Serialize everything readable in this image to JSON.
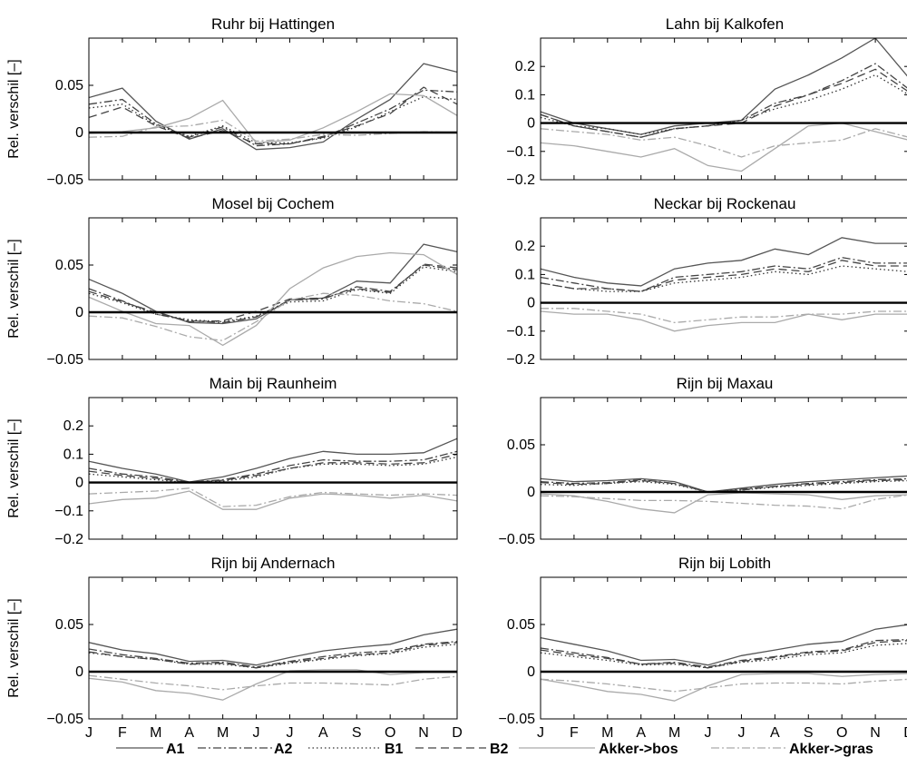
{
  "legend_position": "bottom",
  "ylabel": "Rel. verschil [–]",
  "months": [
    "J",
    "F",
    "M",
    "A",
    "M",
    "J",
    "J",
    "A",
    "S",
    "O",
    "N",
    "D"
  ],
  "styles": {
    "A1": {
      "color": "#555555",
      "dash": ""
    },
    "A2": {
      "color": "#444444",
      "dash": "9,3,2,3"
    },
    "B1": {
      "color": "#333333",
      "dash": "1.5,3"
    },
    "B2": {
      "color": "#444444",
      "dash": "9,5"
    },
    "Akker->bos": {
      "color": "#aaaaaa",
      "dash": ""
    },
    "Akker->gras": {
      "color": "#aaaaaa",
      "dash": "9,3,2,3"
    }
  },
  "chart_data": [
    {
      "type": "line",
      "title": "Ruhr bij Hattingen",
      "ylim": [
        -0.05,
        0.1
      ],
      "yticks": [
        -0.05,
        0,
        0.05
      ],
      "ytick_labels": [
        "−0.05",
        "0",
        "0.05"
      ],
      "x": [
        "J",
        "F",
        "M",
        "A",
        "M",
        "J",
        "J",
        "A",
        "S",
        "O",
        "N",
        "D"
      ],
      "series": [
        {
          "name": "A1",
          "values": [
            0.037,
            0.047,
            0.012,
            -0.007,
            0.004,
            -0.018,
            -0.016,
            -0.01,
            0.014,
            0.035,
            0.073,
            0.064
          ]
        },
        {
          "name": "A2",
          "values": [
            0.03,
            0.035,
            0.009,
            -0.005,
            0.006,
            -0.014,
            -0.012,
            -0.005,
            0.01,
            0.025,
            0.045,
            0.043
          ]
        },
        {
          "name": "B1",
          "values": [
            0.026,
            0.03,
            0.008,
            -0.004,
            0.007,
            -0.011,
            -0.011,
            -0.006,
            0.006,
            0.022,
            0.038,
            0.035
          ]
        },
        {
          "name": "B2",
          "values": [
            0.016,
            0.027,
            0.007,
            -0.006,
            0.002,
            -0.012,
            -0.012,
            -0.004,
            0.007,
            0.02,
            0.048,
            0.03
          ]
        },
        {
          "name": "Akker->bos",
          "values": [
            -0.001,
            0.001,
            0.005,
            0.015,
            0.034,
            -0.011,
            -0.008,
            0.005,
            0.022,
            0.041,
            0.039,
            0.018
          ]
        },
        {
          "name": "Akker->gras",
          "values": [
            -0.005,
            -0.004,
            0.006,
            0.007,
            0.013,
            -0.009,
            -0.007,
            -0.002,
            -0.003,
            -0.001,
            0.001,
            0.0
          ]
        }
      ]
    },
    {
      "type": "line",
      "title": "Lahn bij Kalkofen",
      "ylim": [
        -0.2,
        0.3
      ],
      "yticks": [
        -0.2,
        -0.1,
        0,
        0.1,
        0.2
      ],
      "ytick_labels": [
        "−0.2",
        "−0.1",
        "0",
        "0.1",
        "0.2"
      ],
      "x": [
        "J",
        "F",
        "M",
        "A",
        "M",
        "J",
        "J",
        "A",
        "S",
        "O",
        "N",
        "D"
      ],
      "series": [
        {
          "name": "A1",
          "values": [
            0.04,
            0.0,
            -0.02,
            -0.04,
            -0.01,
            0.0,
            0.01,
            0.12,
            0.17,
            0.23,
            0.3,
            0.16
          ]
        },
        {
          "name": "A2",
          "values": [
            0.03,
            -0.01,
            -0.03,
            -0.05,
            -0.02,
            -0.01,
            0.01,
            0.07,
            0.1,
            0.15,
            0.21,
            0.12
          ]
        },
        {
          "name": "B1",
          "values": [
            0.02,
            -0.01,
            -0.02,
            -0.04,
            -0.02,
            -0.01,
            0.01,
            0.05,
            0.08,
            0.12,
            0.17,
            0.1
          ]
        },
        {
          "name": "B2",
          "values": [
            0.03,
            -0.01,
            -0.03,
            -0.05,
            -0.02,
            -0.01,
            0.0,
            0.06,
            0.1,
            0.14,
            0.19,
            0.11
          ]
        },
        {
          "name": "Akker->bos",
          "values": [
            -0.07,
            -0.08,
            -0.1,
            -0.12,
            -0.09,
            -0.15,
            -0.17,
            -0.09,
            -0.01,
            -0.0,
            -0.03,
            -0.06
          ]
        },
        {
          "name": "Akker->gras",
          "values": [
            -0.02,
            -0.03,
            -0.04,
            -0.06,
            -0.05,
            -0.08,
            -0.12,
            -0.08,
            -0.07,
            -0.06,
            -0.02,
            -0.05
          ]
        }
      ]
    },
    {
      "type": "line",
      "title": "Mosel bij Cochem",
      "ylim": [
        -0.05,
        0.1
      ],
      "yticks": [
        -0.05,
        0,
        0.05
      ],
      "ytick_labels": [
        "−0.05",
        "0",
        "0.05"
      ],
      "x": [
        "J",
        "F",
        "M",
        "A",
        "M",
        "J",
        "J",
        "A",
        "S",
        "O",
        "N",
        "D"
      ],
      "series": [
        {
          "name": "A1",
          "values": [
            0.035,
            0.02,
            0.001,
            -0.011,
            -0.012,
            -0.007,
            0.013,
            0.015,
            0.033,
            0.031,
            0.072,
            0.064
          ]
        },
        {
          "name": "A2",
          "values": [
            0.025,
            0.012,
            -0.002,
            -0.009,
            -0.011,
            -0.005,
            0.013,
            0.014,
            0.027,
            0.022,
            0.05,
            0.045
          ]
        },
        {
          "name": "B1",
          "values": [
            0.02,
            0.01,
            -0.002,
            -0.008,
            -0.01,
            -0.004,
            0.011,
            0.012,
            0.024,
            0.02,
            0.048,
            0.043
          ]
        },
        {
          "name": "B2",
          "values": [
            0.022,
            0.011,
            0.0,
            -0.01,
            -0.009,
            0.001,
            0.014,
            0.015,
            0.025,
            0.021,
            0.051,
            0.047
          ]
        },
        {
          "name": "Akker->bos",
          "values": [
            0.016,
            0.001,
            -0.012,
            -0.014,
            -0.035,
            -0.014,
            0.025,
            0.047,
            0.059,
            0.063,
            0.061,
            0.04
          ]
        },
        {
          "name": "Akker->gras",
          "values": [
            -0.004,
            -0.006,
            -0.015,
            -0.026,
            -0.03,
            -0.01,
            0.013,
            0.02,
            0.018,
            0.012,
            0.009,
            0.001
          ]
        }
      ]
    },
    {
      "type": "line",
      "title": "Neckar bij Rockenau",
      "ylim": [
        -0.2,
        0.3
      ],
      "yticks": [
        -0.2,
        -0.1,
        0,
        0.1,
        0.2
      ],
      "ytick_labels": [
        "−0.2",
        "−0.1",
        "0",
        "0.1",
        "0.2"
      ],
      "x": [
        "J",
        "F",
        "M",
        "A",
        "M",
        "J",
        "J",
        "A",
        "S",
        "O",
        "N",
        "D"
      ],
      "series": [
        {
          "name": "A1",
          "values": [
            0.12,
            0.09,
            0.07,
            0.06,
            0.12,
            0.14,
            0.15,
            0.19,
            0.17,
            0.23,
            0.21,
            0.21
          ]
        },
        {
          "name": "A2",
          "values": [
            0.09,
            0.07,
            0.05,
            0.04,
            0.09,
            0.1,
            0.11,
            0.13,
            0.12,
            0.16,
            0.14,
            0.14
          ]
        },
        {
          "name": "B1",
          "values": [
            0.07,
            0.05,
            0.04,
            0.04,
            0.07,
            0.08,
            0.09,
            0.11,
            0.1,
            0.13,
            0.12,
            0.11
          ]
        },
        {
          "name": "B2",
          "values": [
            0.07,
            0.05,
            0.05,
            0.04,
            0.08,
            0.09,
            0.1,
            0.12,
            0.11,
            0.15,
            0.13,
            0.13
          ]
        },
        {
          "name": "Akker->bos",
          "values": [
            -0.03,
            -0.04,
            -0.04,
            -0.06,
            -0.1,
            -0.08,
            -0.07,
            -0.07,
            -0.04,
            -0.06,
            -0.04,
            -0.04
          ]
        },
        {
          "name": "Akker->gras",
          "values": [
            -0.02,
            -0.02,
            -0.03,
            -0.04,
            -0.07,
            -0.06,
            -0.05,
            -0.05,
            -0.04,
            -0.04,
            -0.03,
            -0.03
          ]
        }
      ]
    },
    {
      "type": "line",
      "title": "Main bij Raunheim",
      "ylim": [
        -0.2,
        0.3
      ],
      "yticks": [
        -0.2,
        -0.1,
        0,
        0.1,
        0.2
      ],
      "ytick_labels": [
        "−0.2",
        "−0.1",
        "0",
        "0.1",
        "0.2"
      ],
      "x": [
        "J",
        "F",
        "M",
        "A",
        "M",
        "J",
        "J",
        "A",
        "S",
        "O",
        "N",
        "D"
      ],
      "series": [
        {
          "name": "A1",
          "values": [
            0.075,
            0.05,
            0.03,
            0.002,
            0.02,
            0.05,
            0.085,
            0.11,
            0.1,
            0.1,
            0.105,
            0.155
          ]
        },
        {
          "name": "A2",
          "values": [
            0.05,
            0.03,
            0.02,
            0.001,
            0.01,
            0.03,
            0.06,
            0.08,
            0.075,
            0.075,
            0.08,
            0.11
          ]
        },
        {
          "name": "B1",
          "values": [
            0.03,
            0.02,
            0.01,
            0.0,
            0.005,
            0.02,
            0.05,
            0.065,
            0.065,
            0.06,
            0.065,
            0.09
          ]
        },
        {
          "name": "B2",
          "values": [
            0.04,
            0.025,
            0.015,
            0.0,
            0.008,
            0.025,
            0.05,
            0.07,
            0.07,
            0.065,
            0.07,
            0.1
          ]
        },
        {
          "name": "Akker->bos",
          "values": [
            -0.075,
            -0.06,
            -0.055,
            -0.03,
            -0.095,
            -0.095,
            -0.055,
            -0.04,
            -0.045,
            -0.055,
            -0.045,
            -0.065
          ]
        },
        {
          "name": "Akker->gras",
          "values": [
            -0.04,
            -0.035,
            -0.03,
            -0.02,
            -0.085,
            -0.08,
            -0.05,
            -0.035,
            -0.04,
            -0.045,
            -0.04,
            -0.045
          ]
        }
      ]
    },
    {
      "type": "line",
      "title": "Rijn bij Maxau",
      "ylim": [
        -0.05,
        0.1
      ],
      "yticks": [
        -0.05,
        0,
        0.05
      ],
      "ytick_labels": [
        "−0.05",
        "0",
        "0.05"
      ],
      "x": [
        "J",
        "F",
        "M",
        "A",
        "M",
        "J",
        "J",
        "A",
        "S",
        "O",
        "N",
        "D"
      ],
      "series": [
        {
          "name": "A1",
          "values": [
            0.014,
            0.011,
            0.012,
            0.014,
            0.011,
            0.0,
            0.004,
            0.008,
            0.011,
            0.013,
            0.015,
            0.017
          ]
        },
        {
          "name": "A2",
          "values": [
            0.011,
            0.009,
            0.01,
            0.013,
            0.009,
            0.0,
            0.003,
            0.006,
            0.009,
            0.011,
            0.013,
            0.014
          ]
        },
        {
          "name": "B1",
          "values": [
            0.008,
            0.007,
            0.009,
            0.011,
            0.008,
            0.0,
            0.002,
            0.005,
            0.007,
            0.009,
            0.011,
            0.012
          ]
        },
        {
          "name": "B2",
          "values": [
            0.01,
            0.008,
            0.009,
            0.012,
            0.009,
            0.0,
            0.002,
            0.006,
            0.008,
            0.01,
            0.012,
            0.013
          ]
        },
        {
          "name": "Akker->bos",
          "values": [
            -0.002,
            -0.004,
            -0.01,
            -0.018,
            -0.022,
            -0.003,
            -0.001,
            -0.002,
            -0.003,
            -0.008,
            -0.004,
            -0.003
          ]
        },
        {
          "name": "Akker->gras",
          "values": [
            -0.004,
            -0.005,
            -0.007,
            -0.009,
            -0.009,
            -0.01,
            -0.012,
            -0.014,
            -0.015,
            -0.018,
            -0.008,
            -0.003
          ]
        }
      ]
    },
    {
      "type": "line",
      "title": "Rijn bij Andernach",
      "ylim": [
        -0.05,
        0.1
      ],
      "yticks": [
        -0.05,
        0,
        0.05
      ],
      "ytick_labels": [
        "−0.05",
        "0",
        "0.05"
      ],
      "x": [
        "J",
        "F",
        "M",
        "A",
        "M",
        "J",
        "J",
        "A",
        "S",
        "O",
        "N",
        "D"
      ],
      "series": [
        {
          "name": "A1",
          "values": [
            0.031,
            0.023,
            0.019,
            0.011,
            0.012,
            0.007,
            0.015,
            0.022,
            0.026,
            0.029,
            0.039,
            0.045
          ]
        },
        {
          "name": "A2",
          "values": [
            0.024,
            0.018,
            0.014,
            0.009,
            0.01,
            0.005,
            0.011,
            0.016,
            0.02,
            0.022,
            0.029,
            0.032
          ]
        },
        {
          "name": "B1",
          "values": [
            0.02,
            0.016,
            0.013,
            0.008,
            0.008,
            0.004,
            0.009,
            0.013,
            0.017,
            0.019,
            0.026,
            0.029
          ]
        },
        {
          "name": "B2",
          "values": [
            0.021,
            0.016,
            0.013,
            0.008,
            0.009,
            0.004,
            0.01,
            0.014,
            0.018,
            0.02,
            0.028,
            0.031
          ]
        },
        {
          "name": "Akker->bos",
          "values": [
            -0.007,
            -0.011,
            -0.02,
            -0.023,
            -0.03,
            -0.013,
            0.001,
            0.002,
            0.002,
            -0.003,
            -0.001,
            -0.001
          ]
        },
        {
          "name": "Akker->gras",
          "values": [
            -0.004,
            -0.008,
            -0.012,
            -0.015,
            -0.019,
            -0.015,
            -0.012,
            -0.012,
            -0.013,
            -0.014,
            -0.008,
            -0.005
          ]
        }
      ]
    },
    {
      "type": "line",
      "title": "Rijn bij Lobith",
      "ylim": [
        -0.05,
        0.1
      ],
      "yticks": [
        -0.05,
        0,
        0.05
      ],
      "ytick_labels": [
        "−0.05",
        "0",
        "0.05"
      ],
      "x": [
        "J",
        "F",
        "M",
        "A",
        "M",
        "J",
        "J",
        "A",
        "S",
        "O",
        "N",
        "D"
      ],
      "series": [
        {
          "name": "A1",
          "values": [
            0.036,
            0.029,
            0.022,
            0.012,
            0.013,
            0.007,
            0.017,
            0.023,
            0.029,
            0.032,
            0.045,
            0.05
          ]
        },
        {
          "name": "A2",
          "values": [
            0.025,
            0.02,
            0.015,
            0.008,
            0.01,
            0.005,
            0.012,
            0.016,
            0.021,
            0.023,
            0.033,
            0.034
          ]
        },
        {
          "name": "B1",
          "values": [
            0.02,
            0.016,
            0.012,
            0.007,
            0.008,
            0.004,
            0.01,
            0.013,
            0.018,
            0.02,
            0.028,
            0.03
          ]
        },
        {
          "name": "B2",
          "values": [
            0.023,
            0.018,
            0.014,
            0.008,
            0.009,
            0.004,
            0.011,
            0.015,
            0.02,
            0.022,
            0.031,
            0.033
          ]
        },
        {
          "name": "Akker->bos",
          "values": [
            -0.008,
            -0.014,
            -0.021,
            -0.024,
            -0.031,
            -0.015,
            -0.003,
            -0.002,
            -0.002,
            -0.005,
            -0.003,
            -0.002
          ]
        },
        {
          "name": "Akker->gras",
          "values": [
            -0.008,
            -0.01,
            -0.013,
            -0.017,
            -0.021,
            -0.017,
            -0.013,
            -0.012,
            -0.012,
            -0.013,
            -0.01,
            -0.008
          ]
        }
      ]
    }
  ]
}
